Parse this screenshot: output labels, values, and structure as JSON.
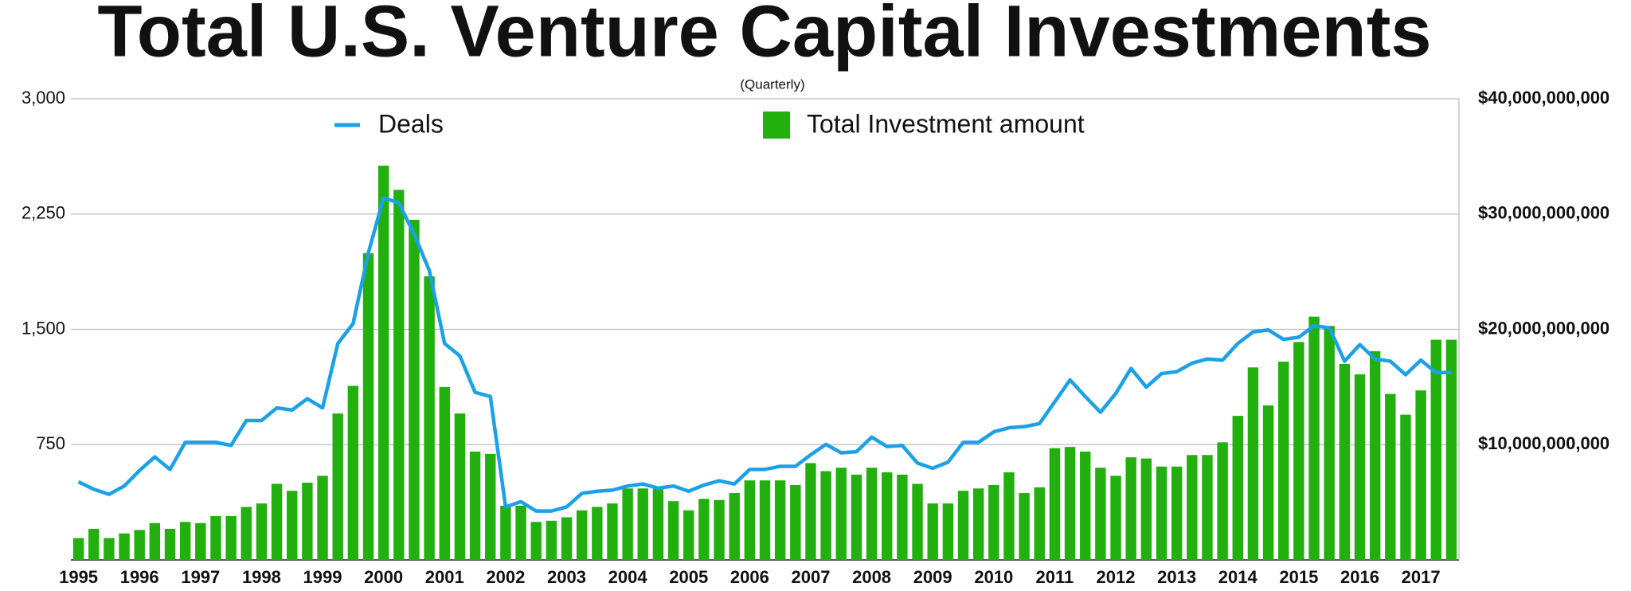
{
  "chart_data": {
    "type": "combo",
    "title": "Total U.S. Venture Capital Investments",
    "subtitle": "(Quarterly)",
    "categories": [
      "1995",
      null,
      null,
      null,
      "1996",
      null,
      null,
      null,
      "1997",
      null,
      null,
      null,
      "1998",
      null,
      null,
      null,
      "1999",
      null,
      null,
      null,
      "2000",
      null,
      null,
      null,
      "2001",
      null,
      null,
      null,
      "2002",
      null,
      null,
      null,
      "2003",
      null,
      null,
      null,
      "2004",
      null,
      null,
      null,
      "2005",
      null,
      null,
      null,
      "2006",
      null,
      null,
      null,
      "2007",
      null,
      null,
      null,
      "2008",
      null,
      null,
      null,
      "2009",
      null,
      null,
      null,
      "2010",
      null,
      null,
      null,
      "2011",
      null,
      null,
      null,
      "2012",
      null,
      null,
      null,
      "2013",
      null,
      null,
      null,
      "2014",
      null,
      null,
      null,
      "2015",
      null,
      null,
      null,
      "2016",
      null,
      null,
      null,
      "2017",
      null,
      null
    ],
    "series": [
      {
        "name": "Deals",
        "type": "line",
        "color": "#1ba1e8",
        "values": [
          508,
          460,
          427,
          481,
          582,
          670,
          589,
          765,
          765,
          765,
          745,
          907,
          907,
          989,
          975,
          1049,
          989,
          1408,
          1537,
          1997,
          2356,
          2322,
          2119,
          1882,
          1408,
          1327,
          1090,
          1063,
          345,
          379,
          318,
          318,
          345,
          433,
          447,
          454,
          481,
          494,
          467,
          481,
          447,
          487,
          515,
          494,
          589,
          589,
          609,
          609,
          684,
          752,
          697,
          704,
          799,
          738,
          745,
          630,
          596,
          636,
          765,
          765,
          833,
          860,
          867,
          887,
          1029,
          1171,
          1063,
          961,
          1083,
          1246,
          1124,
          1212,
          1225,
          1280,
          1307,
          1300,
          1408,
          1483,
          1496,
          1435,
          1449,
          1523,
          1510,
          1293,
          1401,
          1307,
          1293,
          1205,
          1300,
          1219,
          1219
        ]
      },
      {
        "name": "Total Investment amount",
        "type": "bar",
        "axis": "y2",
        "color": "#22b00f",
        "values": [
          1900000000,
          2700000000,
          1900000000,
          2300000000,
          2600000000,
          3200000000,
          2700000000,
          3300000000,
          3200000000,
          3800000000,
          3800000000,
          4600000000,
          4900000000,
          6600000000,
          6000000000,
          6700000000,
          7300000000,
          12700000000,
          15100000000,
          26600000000,
          34200000000,
          32100000000,
          29500000000,
          24600000000,
          15000000000,
          12700000000,
          9400000000,
          9200000000,
          4700000000,
          4700000000,
          3300000000,
          3400000000,
          3700000000,
          4300000000,
          4600000000,
          4900000000,
          6200000000,
          6200000000,
          6200000000,
          5100000000,
          4300000000,
          5300000000,
          5200000000,
          5800000000,
          6900000000,
          6900000000,
          6900000000,
          6500000000,
          8400000000,
          7700000000,
          8000000000,
          7400000000,
          8000000000,
          7600000000,
          7400000000,
          6600000000,
          4900000000,
          4900000000,
          6000000000,
          6200000000,
          6500000000,
          7600000000,
          5800000000,
          6300000000,
          9700000000,
          9800000000,
          9400000000,
          8000000000,
          7300000000,
          8900000000,
          8800000000,
          8100000000,
          8100000000,
          9100000000,
          9100000000,
          10200000000,
          12500000000,
          16700000000,
          13400000000,
          17200000000,
          18900000000,
          21100000000,
          20300000000,
          17000000000,
          16100000000,
          18100000000,
          14400000000,
          12600000000,
          14700000000,
          19100000000,
          19100000000
        ]
      }
    ],
    "ylim": [
      0,
      3000
    ],
    "yticks": [
      750,
      {
        "value": 1500,
        "label": "1,500"
      },
      {
        "value": 2250,
        "label": "2,250"
      },
      {
        "value": 3000,
        "label": "3,000"
      }
    ],
    "y2lim": [
      0,
      40000000000
    ],
    "y2ticks": [
      {
        "value": 10000000000,
        "label": "$10,000,000,000"
      },
      {
        "value": 20000000000,
        "label": "$20,000,000,000"
      },
      {
        "value": 30000000000,
        "label": "$30,000,000,000"
      },
      {
        "value": 40000000000,
        "label": "$40,000,000,000"
      }
    ],
    "grid": true
  }
}
